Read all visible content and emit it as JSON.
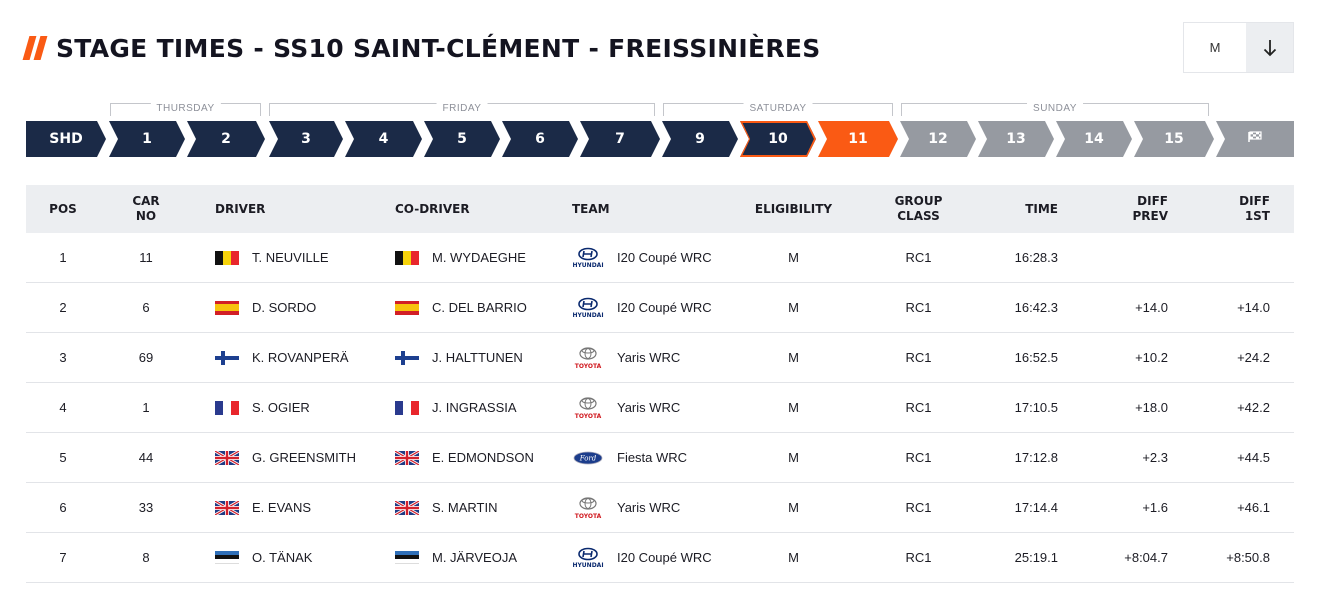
{
  "header": {
    "title": "STAGE TIMES - SS10 SAINT-CLÉMENT - FREISSINIÈRES",
    "filter_value": "M",
    "sort_icon": "arrow-down-icon"
  },
  "days": [
    {
      "label": "THURSDAY"
    },
    {
      "label": "FRIDAY"
    },
    {
      "label": "SATURDAY"
    },
    {
      "label": "SUNDAY"
    }
  ],
  "stages": [
    {
      "label": "SHD",
      "state": "done"
    },
    {
      "label": "1",
      "state": "done"
    },
    {
      "label": "2",
      "state": "done"
    },
    {
      "label": "3",
      "state": "done"
    },
    {
      "label": "4",
      "state": "done"
    },
    {
      "label": "5",
      "state": "done"
    },
    {
      "label": "6",
      "state": "done"
    },
    {
      "label": "7",
      "state": "done"
    },
    {
      "label": "9",
      "state": "done"
    },
    {
      "label": "10",
      "state": "selected"
    },
    {
      "label": "11",
      "state": "live"
    },
    {
      "label": "12",
      "state": "upcoming"
    },
    {
      "label": "13",
      "state": "upcoming"
    },
    {
      "label": "14",
      "state": "upcoming"
    },
    {
      "label": "15",
      "state": "upcoming"
    },
    {
      "label": "",
      "state": "finish",
      "icon": "finish-flag-icon"
    }
  ],
  "columns": {
    "pos": "POS",
    "car_no_1": "CAR",
    "car_no_2": "NO",
    "driver": "DRIVER",
    "codriver": "CO-DRIVER",
    "team": "TEAM",
    "eligibility": "ELIGIBILITY",
    "group_1": "GROUP",
    "group_2": "CLASS",
    "time": "TIME",
    "diff_prev_1": "DIFF",
    "diff_prev_2": "PREV",
    "diff_1st_1": "DIFF",
    "diff_1st_2": "1ST"
  },
  "rows": [
    {
      "pos": "1",
      "car": "11",
      "flag": "belgium",
      "driver": "T. NEUVILLE",
      "codriver_flag": "belgium",
      "codriver": "M. WYDAEGHE",
      "logo": "hyundai",
      "team": "I20 Coupé WRC",
      "eligibility": "M",
      "group": "RC1",
      "time": "16:28.3",
      "diff_prev": "",
      "diff_first": ""
    },
    {
      "pos": "2",
      "car": "6",
      "flag": "spain",
      "driver": "D. SORDO",
      "codriver_flag": "spain",
      "codriver": "C. DEL BARRIO",
      "logo": "hyundai",
      "team": "I20 Coupé WRC",
      "eligibility": "M",
      "group": "RC1",
      "time": "16:42.3",
      "diff_prev": "+14.0",
      "diff_first": "+14.0"
    },
    {
      "pos": "3",
      "car": "69",
      "flag": "finland",
      "driver": "K. ROVANPERÄ",
      "codriver_flag": "finland",
      "codriver": "J. HALTTUNEN",
      "logo": "toyota",
      "team": "Yaris WRC",
      "eligibility": "M",
      "group": "RC1",
      "time": "16:52.5",
      "diff_prev": "+10.2",
      "diff_first": "+24.2"
    },
    {
      "pos": "4",
      "car": "1",
      "flag": "france",
      "driver": "S. OGIER",
      "codriver_flag": "france",
      "codriver": "J. INGRASSIA",
      "logo": "toyota",
      "team": "Yaris WRC",
      "eligibility": "M",
      "group": "RC1",
      "time": "17:10.5",
      "diff_prev": "+18.0",
      "diff_first": "+42.2"
    },
    {
      "pos": "5",
      "car": "44",
      "flag": "uk",
      "driver": "G. GREENSMITH",
      "codriver_flag": "uk",
      "codriver": "E. EDMONDSON",
      "logo": "ford",
      "team": "Fiesta WRC",
      "eligibility": "M",
      "group": "RC1",
      "time": "17:12.8",
      "diff_prev": "+2.3",
      "diff_first": "+44.5"
    },
    {
      "pos": "6",
      "car": "33",
      "flag": "uk",
      "driver": "E. EVANS",
      "codriver_flag": "uk",
      "codriver": "S. MARTIN",
      "logo": "toyota",
      "team": "Yaris WRC",
      "eligibility": "M",
      "group": "RC1",
      "time": "17:14.4",
      "diff_prev": "+1.6",
      "diff_first": "+46.1"
    },
    {
      "pos": "7",
      "car": "8",
      "flag": "estonia",
      "driver": "O. TÄNAK",
      "codriver_flag": "estonia",
      "codriver": "M. JÄRVEOJA",
      "logo": "hyundai",
      "team": "I20 Coupé WRC",
      "eligibility": "M",
      "group": "RC1",
      "time": "25:19.1",
      "diff_prev": "+8:04.7",
      "diff_first": "+8:50.8"
    }
  ],
  "colors": {
    "accent": "#fa5a14",
    "navy": "#1b2a47",
    "upcoming": "#969aa1",
    "header_bg": "#eceef1"
  }
}
